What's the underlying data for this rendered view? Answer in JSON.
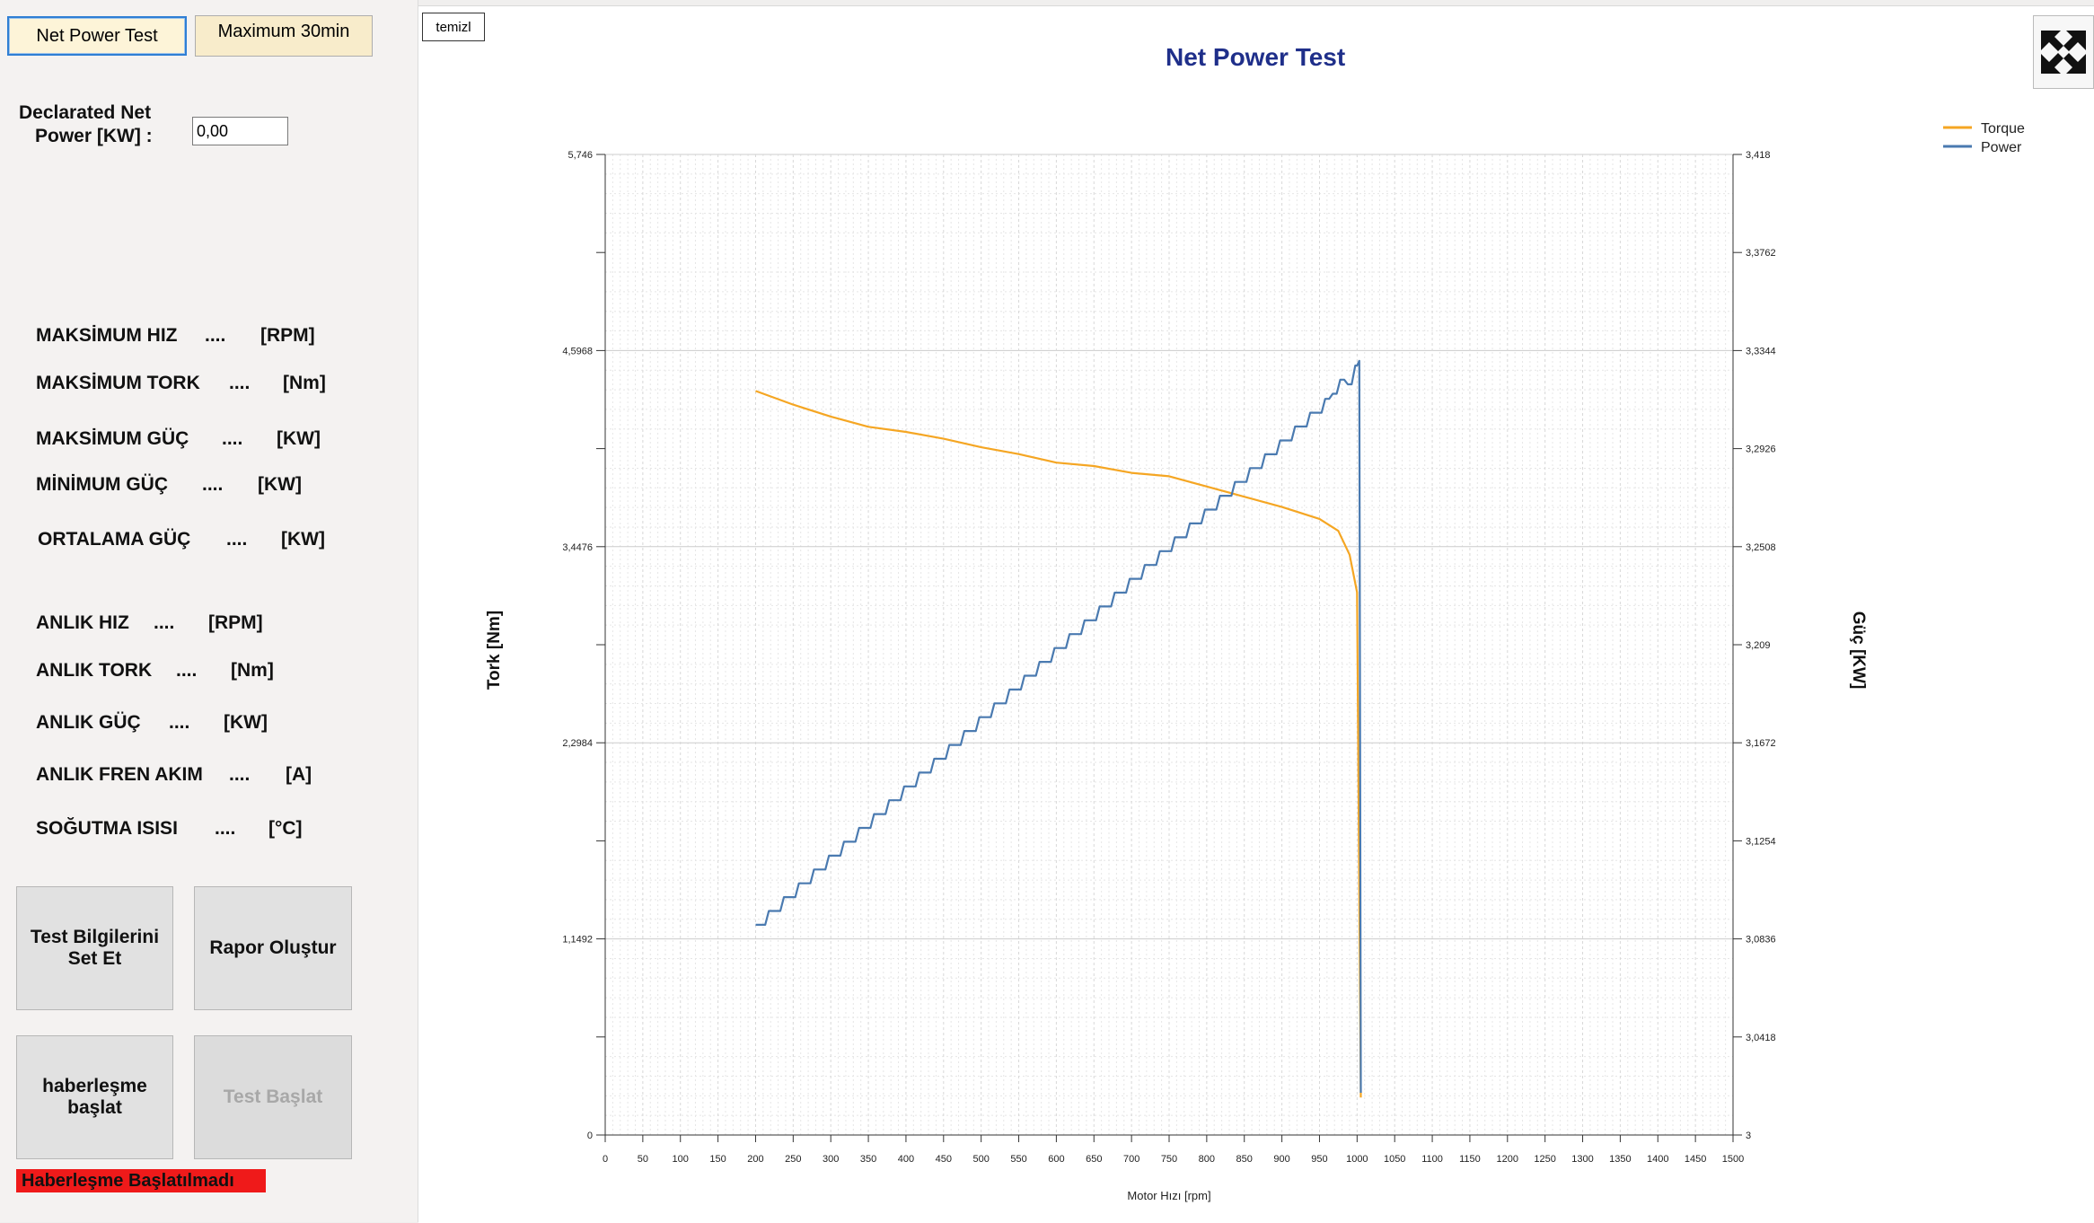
{
  "tabs": [
    {
      "label": "Net Power Test",
      "active": true
    },
    {
      "label": "Maximum 30min",
      "active": false
    }
  ],
  "clear_button": "temizl",
  "declared_power": {
    "label_line1": "Declarated Net",
    "label_line2": "Power  [KW] :",
    "value": "0,00"
  },
  "stats": [
    {
      "name": "MAKSİMUM HIZ",
      "dots": "....",
      "unit": "[RPM]"
    },
    {
      "name": "MAKSİMUM TORK",
      "dots": "....",
      "unit": "[Nm]"
    },
    {
      "name": "MAKSİMUM GÜÇ",
      "dots": "....",
      "unit": "[KW]"
    },
    {
      "name": "MİNİMUM GÜÇ",
      "dots": "....",
      "unit": "[KW]"
    },
    {
      "name": "ORTALAMA GÜÇ",
      "dots": "....",
      "unit": "[KW]"
    },
    {
      "name": "ANLIK HIZ",
      "dots": "....",
      "unit": "[RPM]"
    },
    {
      "name": "ANLIK TORK",
      "dots": "....",
      "unit": "[Nm]"
    },
    {
      "name": "ANLIK GÜÇ",
      "dots": "....",
      "unit": "[KW]"
    },
    {
      "name": "ANLIK FREN AKIM",
      "dots": "....",
      "unit": "[A]"
    },
    {
      "name": "SOĞUTMA ISISI",
      "dots": "....",
      "unit": "[°C]"
    }
  ],
  "buttons": {
    "test_info_line1": "Test Bilgilerini",
    "test_info_line2": "Set Et",
    "report": "Rapor Oluştur",
    "comm_line1": "haberleşme",
    "comm_line2": "başlat",
    "start_test": "Test Başlat"
  },
  "status_message": "Haberleşme Başlatılmadı",
  "colors": {
    "torque": "#f5a623",
    "power": "#4a7ab0",
    "title": "#1f2f8a",
    "status_bg": "#ef1a1a"
  },
  "chart_data": {
    "type": "line",
    "title": "Net Power Test",
    "xlabel": "Motor Hızı [rpm]",
    "ylabel": "Tork [Nm]",
    "y2label": "Güç [KW]",
    "xlim": [
      0,
      1500
    ],
    "ylim": [
      0,
      5.746
    ],
    "y2lim": [
      3,
      3.418
    ],
    "x_ticks": [
      "0",
      "50",
      "100",
      "150",
      "200",
      "250",
      "300",
      "350",
      "400",
      "450",
      "500",
      "550",
      "600",
      "650",
      "700",
      "750",
      "800",
      "850",
      "900",
      "950",
      "1000",
      "1050",
      "1100",
      "1150",
      "1200",
      "1250",
      "1300",
      "1350",
      "1400",
      "1450",
      "1500"
    ],
    "y_ticks": [
      "0",
      "1,1492",
      "2,2984",
      "3,4476",
      "4,5968",
      "5,746"
    ],
    "y2_ticks": [
      "3",
      "3,0418",
      "3,0836",
      "3,1254",
      "3,1672",
      "3,209",
      "3,2508",
      "3,2926",
      "3,3344",
      "3,3762",
      "3,418"
    ],
    "legend": [
      "Torque",
      "Power"
    ],
    "legend_position": "top-right",
    "grid": true,
    "series": [
      {
        "name": "Torque",
        "axis": "left",
        "x": [
          200,
          250,
          300,
          350,
          400,
          450,
          500,
          550,
          600,
          650,
          700,
          750,
          800,
          850,
          900,
          950,
          975,
          990,
          1000,
          1005
        ],
        "y": [
          4.36,
          4.28,
          4.21,
          4.15,
          4.12,
          4.08,
          4.03,
          3.99,
          3.94,
          3.92,
          3.88,
          3.86,
          3.8,
          3.74,
          3.68,
          3.61,
          3.54,
          3.4,
          3.18,
          0.22
        ]
      },
      {
        "name": "Power",
        "axis": "right",
        "x": [
          200,
          220,
          240,
          260,
          280,
          300,
          320,
          340,
          360,
          380,
          400,
          420,
          440,
          460,
          480,
          500,
          520,
          540,
          560,
          580,
          600,
          620,
          640,
          660,
          680,
          700,
          720,
          740,
          760,
          780,
          800,
          820,
          840,
          860,
          880,
          900,
          920,
          940,
          960,
          970,
          980,
          990,
          1000,
          1003,
          1005
        ],
        "y": [
          3.0896,
          3.0955,
          3.1014,
          3.1073,
          3.1132,
          3.1191,
          3.125,
          3.1309,
          3.1368,
          3.1427,
          3.1486,
          3.1545,
          3.1604,
          3.1663,
          3.1722,
          3.1781,
          3.184,
          3.1899,
          3.1958,
          3.2017,
          3.2076,
          3.2135,
          3.2194,
          3.2253,
          3.2312,
          3.2371,
          3.243,
          3.2489,
          3.2548,
          3.2607,
          3.2666,
          3.2725,
          3.2784,
          3.2843,
          3.2902,
          3.2961,
          3.302,
          3.3079,
          3.3138,
          3.316,
          3.322,
          3.32,
          3.328,
          3.33,
          3.018
        ]
      }
    ]
  }
}
